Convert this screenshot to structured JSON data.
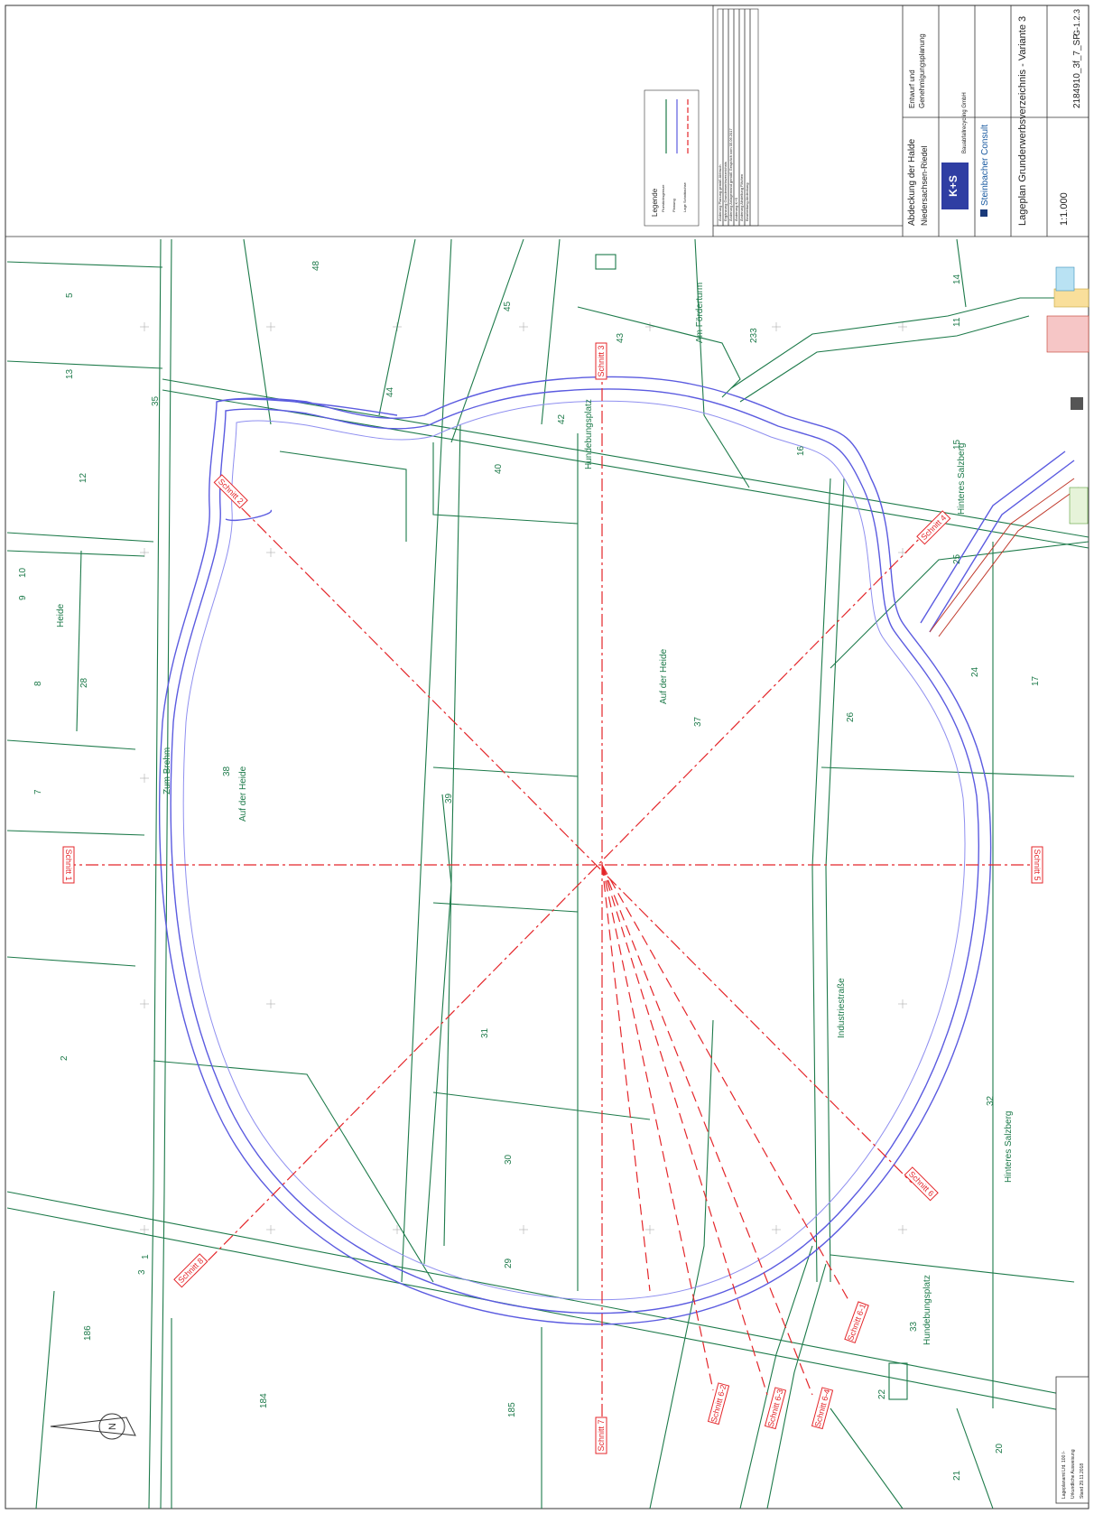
{
  "title_block": {
    "project": "Abdeckung der Halde",
    "location": "Niedersachsen-Riedel",
    "company": "K+S",
    "company_sub": "Bauabfallrecycling GmbH",
    "planner": "Steinbacher Consult",
    "plan_title": "Lageplan Grunderwerbsverzeichnis - Variante 3",
    "scale": "1:1.000",
    "drawing_no": "2184910_3f_7_SP",
    "sheet": "G-1.2.3",
    "permit_title": "Genehmigungsplanung",
    "permit_status": "Entwurf und"
  },
  "legend": {
    "title": "Legende",
    "items": [
      {
        "label": "Flurstücksgrenze",
        "color": "#1d7a4a"
      },
      {
        "label": "Planung",
        "color": "#5b5be0"
      },
      {
        "label": "Lage Schnittachse",
        "color": "#e4262a"
      }
    ]
  },
  "revisions": [
    "Änderung Planung gemäß Abbruch",
    "Ergänzung Grunderwerbsverzeichnis",
    "Änderung Anlagenrand gemäß Gespräch vom 05.06.2017",
    "Änderung K+S",
    "Änderung Abstellung Flächen",
    "Bearbeitung Abdeckung"
  ],
  "sections": [
    {
      "label": "Schnitt 1"
    },
    {
      "label": "Schnitt 2"
    },
    {
      "label": "Schnitt 3"
    },
    {
      "label": "Schnitt 4"
    },
    {
      "label": "Schnitt 5"
    },
    {
      "label": "Schnitt 6"
    },
    {
      "label": "Schnitt 7"
    },
    {
      "label": "Schnitt 8"
    },
    {
      "label": "Schnitt 6-1"
    },
    {
      "label": "Schnitt 6-2"
    },
    {
      "label": "Schnitt 6-3"
    },
    {
      "label": "Schnitt 6-4"
    }
  ],
  "field_names": [
    "Auf der Heide",
    "Auf der Heide",
    "Hinteres Salzberg",
    "Hinteres Salzberg",
    "Hundebungsplatz",
    "Hundebungsplatz",
    "Zum Brehm",
    "Heide",
    "Am Förderturm",
    "Industriestraße"
  ],
  "parcels": [
    "48",
    "45",
    "43",
    "44",
    "42",
    "40",
    "39",
    "37",
    "38",
    "31",
    "30",
    "29",
    "28",
    "26",
    "25",
    "24",
    "22",
    "21",
    "20",
    "17",
    "16",
    "15",
    "14",
    "13",
    "12",
    "11",
    "10",
    "9",
    "8",
    "7",
    "5",
    "3",
    "2",
    "1",
    "186",
    "185",
    "184",
    "33",
    "32",
    "35",
    "233"
  ],
  "stamp": {
    "line1": "Lageplanamt Lfd. 100 /-",
    "line2": "Urkundliche Ausweisung",
    "line3": "Stand 29.11.2018"
  },
  "north_label": "N"
}
